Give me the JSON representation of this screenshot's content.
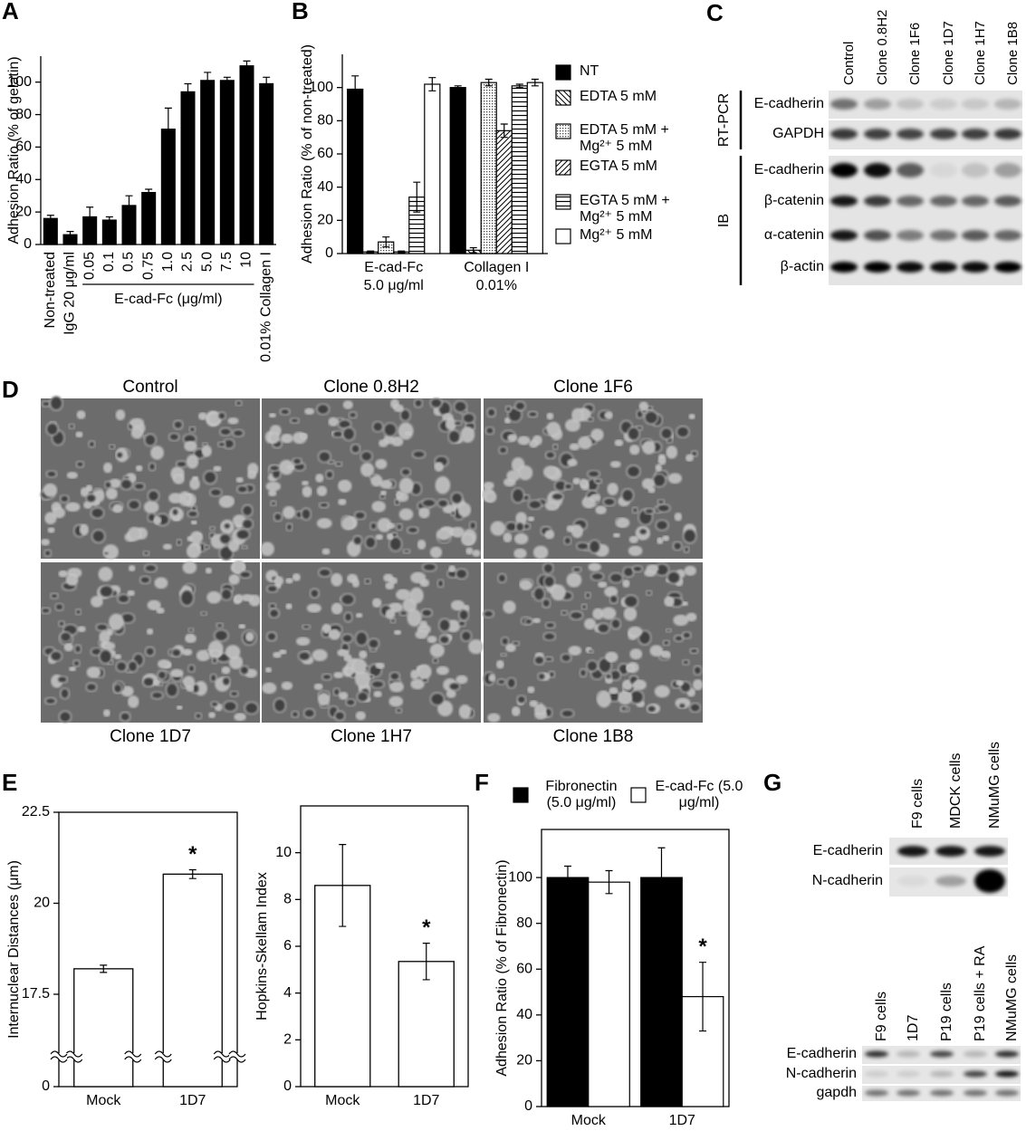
{
  "chart_data": [
    {
      "type": "bar",
      "panel": "A",
      "y_label": "Adhesion Ratio (% of gelatin)",
      "categories": [
        "Non-treated",
        "IgG 20 μg/ml",
        "0.05",
        "0.1",
        "0.5",
        "0.75",
        "1.0",
        "2.5",
        "5.0",
        "7.5",
        "10",
        "0.01% Collagen I"
      ],
      "values": [
        16,
        6,
        17,
        15,
        24,
        32,
        71,
        94,
        101,
        101,
        110,
        99
      ],
      "errors": [
        2,
        2,
        6,
        2,
        6,
        2,
        13,
        5,
        5,
        2,
        3,
        4
      ],
      "color": "#000000",
      "ylim": [
        0,
        116
      ],
      "yticks": [
        0,
        20,
        40,
        60,
        80,
        100
      ],
      "frame": false,
      "group_label": {
        "text": "E-cad-Fc (μg/ml)",
        "from": "0.05",
        "to": "10"
      }
    },
    {
      "type": "grouped_bar",
      "panel": "B",
      "y_label": "Adhesion Ratio (% of non-treated)",
      "categories": [
        [
          "E-cad-Fc",
          "5.0 μg/ml"
        ],
        [
          "Collagen I",
          "0.01%"
        ]
      ],
      "series": [
        {
          "name": "NT",
          "color": "#000000",
          "pattern": "solid",
          "values": [
            99,
            100
          ],
          "errors": [
            8,
            1
          ]
        },
        {
          "name": "EDTA 5 mM",
          "color": "#ffffff",
          "pattern": "back-diagonal",
          "values": [
            1,
            2
          ],
          "errors": [
            0.5,
            1.5
          ]
        },
        {
          "name": "EDTA 5 mM + Mg²⁺ 5 mM",
          "color": "#ffffff",
          "pattern": "dots",
          "values": [
            7,
            103
          ],
          "errors": [
            3,
            2
          ]
        },
        {
          "name": "EGTA 5 mM",
          "color": "#ffffff",
          "pattern": "diagonal",
          "values": [
            1,
            74
          ],
          "errors": [
            0.5,
            4
          ]
        },
        {
          "name": "EGTA 5 mM + Mg²⁺ 5 mM",
          "color": "#ffffff",
          "pattern": "horizontal",
          "values": [
            34,
            101
          ],
          "errors": [
            9,
            1
          ]
        },
        {
          "name": "Mg²⁺ 5 mM",
          "color": "#ffffff",
          "pattern": "solid",
          "values": [
            102,
            103
          ],
          "errors": [
            4,
            2
          ]
        }
      ],
      "ylim": [
        0,
        120
      ],
      "yticks": [
        0,
        20,
        40,
        60,
        80,
        100
      ],
      "frame": false
    },
    {
      "type": "bar",
      "panel": "E",
      "y_label": "Internuclear Distances (μm)",
      "categories": [
        "Mock",
        "1D7"
      ],
      "values": [
        18.2,
        20.8
      ],
      "errors": [
        0.1,
        0.12
      ],
      "color": "#ffffff",
      "ylim": [
        0,
        22.5
      ],
      "yticks": [
        0,
        17.5,
        20,
        22.5
      ],
      "axis_break": true,
      "frame": true,
      "annotations": [
        {
          "text": "*",
          "category": "1D7"
        }
      ]
    },
    {
      "type": "bar",
      "y_label": "Hopkins-Skellam Index",
      "categories": [
        "Mock",
        "1D7"
      ],
      "values": [
        8.6,
        5.35
      ],
      "errors": [
        1.75,
        0.78
      ],
      "color": "#ffffff",
      "ylim": [
        0,
        12
      ],
      "yticks": [
        0,
        2,
        4,
        6,
        8,
        10
      ],
      "frame": true,
      "annotations": [
        {
          "text": "*",
          "category": "1D7"
        }
      ]
    },
    {
      "type": "grouped_bar",
      "panel": "F",
      "y_label": "Adhesion Ratio (% of Fibronectin)",
      "categories": [
        "Mock",
        "1D7"
      ],
      "series": [
        {
          "name": "Fibronectin (5.0 μg/ml)",
          "color": "#000000",
          "pattern": "solid",
          "values": [
            100,
            100
          ],
          "errors": [
            5,
            13
          ]
        },
        {
          "name": "E-cad-Fc (5.0 μg/ml)",
          "color": "#ffffff",
          "pattern": "solid",
          "values": [
            98,
            48
          ],
          "errors": [
            5,
            15
          ]
        }
      ],
      "ylim": [
        0,
        121
      ],
      "yticks": [
        0,
        20,
        40,
        60,
        80,
        100
      ],
      "frame": true,
      "annotations": [
        {
          "text": "*",
          "category": "1D7",
          "series": "E-cad-Fc (5.0 μg/ml)"
        }
      ]
    }
  ],
  "panel_c": {
    "panel": "C",
    "columns": [
      "Control",
      "Clone 0.8H2",
      "Clone 1F6",
      "Clone 1D7",
      "Clone 1H7",
      "Clone 1B8"
    ],
    "groups": [
      {
        "label": "RT-PCR",
        "rows": [
          "E-cadherin",
          "GAPDH"
        ]
      },
      {
        "label": "IB",
        "rows": [
          "E-cadherin",
          "β-catenin",
          "α-catenin",
          "β-actin"
        ]
      }
    ]
  },
  "panel_d": {
    "panel": "D",
    "images": [
      "Control",
      "Clone 0.8H2",
      "Clone 1F6",
      "Clone 1D7",
      "Clone 1H7",
      "Clone 1B8"
    ]
  },
  "panel_g": {
    "panel": "G",
    "blots": [
      {
        "columns": [
          "F9 cells",
          "MDCK cells",
          "NMuMG cells"
        ],
        "rows": [
          "E-cadherin",
          "N-cadherin"
        ]
      },
      {
        "columns": [
          "F9 cells",
          "1D7",
          "P19 cells",
          "P19 cells + RA",
          "NMuMG cells"
        ],
        "rows": [
          "E-cadherin",
          "N-cadherin",
          "gapdh"
        ]
      }
    ]
  }
}
